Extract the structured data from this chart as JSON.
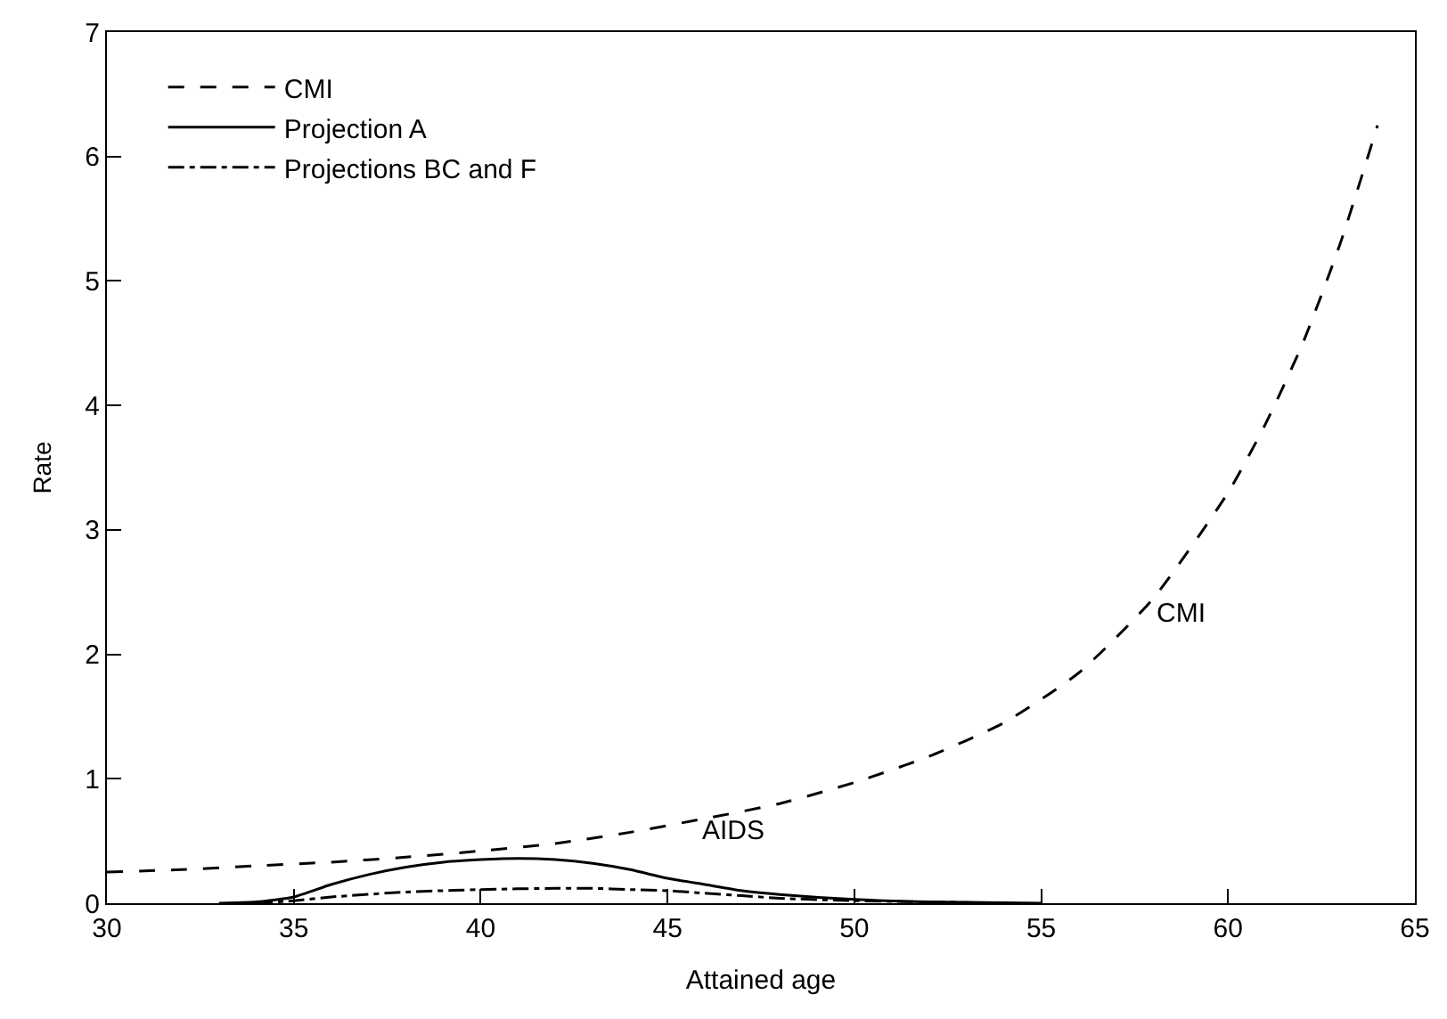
{
  "chart_data": {
    "type": "line",
    "xlabel": "Attained age",
    "ylabel": "Rate",
    "xlim": [
      30,
      65
    ],
    "xticks": [
      30,
      35,
      40,
      45,
      50,
      55,
      60,
      65
    ],
    "ylim": [
      0,
      7
    ],
    "yticks": [
      0,
      1,
      2,
      3,
      4,
      5,
      6,
      7
    ],
    "legend": "top left",
    "marker": "none",
    "series": [
      {
        "name": "CMI",
        "color": "#000000",
        "line_style": "dashed",
        "x": [
          30,
          32,
          34,
          36,
          38,
          40,
          42,
          44,
          46,
          48,
          50,
          52,
          54,
          56,
          58,
          60,
          61,
          62,
          63,
          64
        ],
        "values": [
          0.25,
          0.27,
          0.3,
          0.33,
          0.37,
          0.42,
          0.48,
          0.57,
          0.68,
          0.8,
          0.97,
          1.18,
          1.45,
          1.85,
          2.45,
          3.3,
          3.85,
          4.5,
          5.3,
          6.25
        ]
      },
      {
        "name": "Projection A",
        "color": "#000000",
        "line_style": "solid",
        "x": [
          33,
          34,
          35,
          36,
          37,
          38,
          39,
          40,
          41,
          42,
          43,
          44,
          45,
          46,
          47,
          48,
          50,
          52,
          55
        ],
        "values": [
          0,
          0.01,
          0.05,
          0.15,
          0.23,
          0.29,
          0.33,
          0.35,
          0.36,
          0.35,
          0.32,
          0.27,
          0.2,
          0.15,
          0.1,
          0.07,
          0.03,
          0.01,
          0
        ]
      },
      {
        "name": "Projections BC and F",
        "color": "#000000",
        "line_style": "dashdot",
        "x": [
          34,
          35,
          36,
          38,
          40,
          42,
          43,
          44,
          45,
          46,
          47,
          48,
          50,
          52,
          54
        ],
        "values": [
          0,
          0.02,
          0.05,
          0.09,
          0.11,
          0.12,
          0.12,
          0.11,
          0.1,
          0.08,
          0.06,
          0.04,
          0.02,
          0.01,
          0
        ]
      }
    ],
    "annotations": [
      "CMI",
      "AIDS"
    ]
  }
}
